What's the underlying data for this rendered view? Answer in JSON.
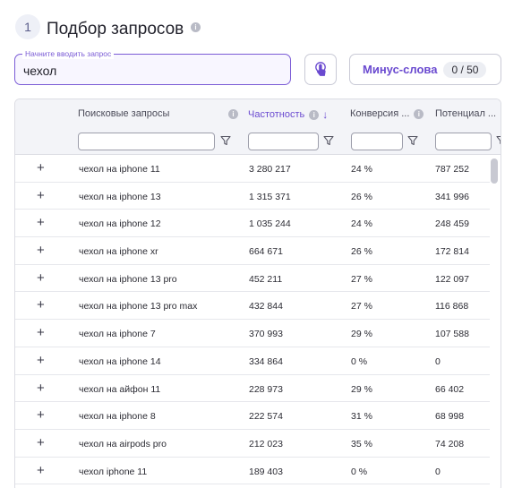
{
  "step": {
    "number": "1",
    "title": "Подбор запросов"
  },
  "query": {
    "label": "Начните вводить запрос",
    "value": "чехол"
  },
  "minus_words": {
    "label": "Минус-слова",
    "count": "0 / 50"
  },
  "table": {
    "columns": {
      "query": "Поисковые запросы",
      "frequency": "Частотность",
      "conversion": "Конверсия ...",
      "potential": "Потенциал ..."
    },
    "rows": [
      {
        "query": "чехол на iphone 11",
        "frequency": "3 280 217",
        "conversion": "24 %",
        "potential": "787 252"
      },
      {
        "query": "чехол на iphone 13",
        "frequency": "1 315 371",
        "conversion": "26 %",
        "potential": "341 996"
      },
      {
        "query": "чехол на iphone 12",
        "frequency": "1 035 244",
        "conversion": "24 %",
        "potential": "248 459"
      },
      {
        "query": "чехол на iphone xr",
        "frequency": "664 671",
        "conversion": "26 %",
        "potential": "172 814"
      },
      {
        "query": "чехол на iphone 13 pro",
        "frequency": "452 211",
        "conversion": "27 %",
        "potential": "122 097"
      },
      {
        "query": "чехол на iphone 13 pro max",
        "frequency": "432 844",
        "conversion": "27 %",
        "potential": "116 868"
      },
      {
        "query": "чехол на iphone 7",
        "frequency": "370 993",
        "conversion": "29 %",
        "potential": "107 588"
      },
      {
        "query": "чехол на iphone 14",
        "frequency": "334 864",
        "conversion": "0 %",
        "potential": "0"
      },
      {
        "query": "чехол на айфон 11",
        "frequency": "228 973",
        "conversion": "29 %",
        "potential": "66 402"
      },
      {
        "query": "чехол на iphone 8",
        "frequency": "222 574",
        "conversion": "31 %",
        "potential": "68 998"
      },
      {
        "query": "чехол на airpods pro",
        "frequency": "212 023",
        "conversion": "35 %",
        "potential": "74 208"
      },
      {
        "query": "чехол iphone 11",
        "frequency": "189 403",
        "conversion": "0 %",
        "potential": "0"
      }
    ]
  },
  "icons": {
    "info": "info-icon",
    "sort": "sort-desc-arrow-icon",
    "filter": "filter-funnel-icon",
    "add": "plus-icon",
    "touch": "touch-hand-icon"
  },
  "colors": {
    "accent": "#7b5cd6",
    "accent_text": "#6a4ad0",
    "header_bg": "#f3f4f8"
  }
}
